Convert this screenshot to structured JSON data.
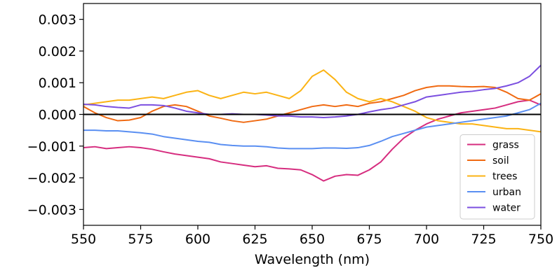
{
  "chart_data": {
    "type": "line",
    "title": "",
    "xlabel": "Wavelength (nm)",
    "ylabel": "",
    "xlim": [
      550,
      750
    ],
    "ylim": [
      -0.0035,
      0.0035
    ],
    "xticks": [
      550,
      575,
      600,
      625,
      650,
      675,
      700,
      725,
      750
    ],
    "xtick_labels": [
      "550",
      "575",
      "600",
      "625",
      "650",
      "675",
      "700",
      "725",
      "750"
    ],
    "yticks": [
      0.003,
      0.002,
      0.001,
      0.0,
      -0.001,
      -0.002,
      -0.003
    ],
    "ytick_labels": [
      "0.003",
      "0.002",
      "0.001",
      "0.000",
      "−0.001",
      "−0.002",
      "−0.003"
    ],
    "grid": false,
    "legend_position": "bottom-right",
    "reference_line": {
      "y": 0.0,
      "color": "#000000"
    },
    "series": [
      {
        "name": "grass",
        "color": "#d62d7f",
        "x": [
          550,
          555,
          560,
          565,
          570,
          575,
          580,
          585,
          590,
          595,
          600,
          605,
          610,
          615,
          620,
          625,
          630,
          635,
          640,
          645,
          650,
          655,
          660,
          665,
          670,
          675,
          680,
          685,
          690,
          695,
          700,
          705,
          710,
          715,
          720,
          725,
          730,
          735,
          740,
          745,
          750
        ],
        "y": [
          -0.00105,
          -0.00102,
          -0.00108,
          -0.00105,
          -0.00102,
          -0.00105,
          -0.0011,
          -0.00118,
          -0.00125,
          -0.0013,
          -0.00135,
          -0.0014,
          -0.0015,
          -0.00155,
          -0.0016,
          -0.00165,
          -0.00162,
          -0.0017,
          -0.00172,
          -0.00175,
          -0.0019,
          -0.0021,
          -0.00195,
          -0.0019,
          -0.00192,
          -0.00175,
          -0.0015,
          -0.0011,
          -0.00075,
          -0.0005,
          -0.0003,
          -0.00015,
          -5e-05,
          5e-05,
          0.0001,
          0.00015,
          0.0002,
          0.0003,
          0.0004,
          0.00045,
          0.0003
        ]
      },
      {
        "name": "soil",
        "color": "#f06a12",
        "x": [
          550,
          555,
          560,
          565,
          570,
          575,
          580,
          585,
          590,
          595,
          600,
          605,
          610,
          615,
          620,
          625,
          630,
          635,
          640,
          645,
          650,
          655,
          660,
          665,
          670,
          675,
          680,
          685,
          690,
          695,
          700,
          705,
          710,
          715,
          720,
          725,
          730,
          735,
          740,
          745,
          750
        ],
        "y": [
          0.00025,
          5e-05,
          -0.0001,
          -0.0002,
          -0.00018,
          -0.0001,
          0.0001,
          0.00025,
          0.0003,
          0.00025,
          0.0001,
          -5e-05,
          -0.00012,
          -0.0002,
          -0.00025,
          -0.0002,
          -0.00015,
          -5e-05,
          5e-05,
          0.00015,
          0.00025,
          0.0003,
          0.00025,
          0.0003,
          0.00025,
          0.00035,
          0.0004,
          0.0005,
          0.0006,
          0.00075,
          0.00085,
          0.0009,
          0.0009,
          0.00088,
          0.00087,
          0.00088,
          0.00085,
          0.0007,
          0.0005,
          0.00045,
          0.00065
        ]
      },
      {
        "name": "trees",
        "color": "#fbb314",
        "x": [
          550,
          555,
          560,
          565,
          570,
          575,
          580,
          585,
          590,
          595,
          600,
          605,
          610,
          615,
          620,
          625,
          630,
          635,
          640,
          645,
          650,
          655,
          660,
          665,
          670,
          675,
          680,
          685,
          690,
          695,
          700,
          705,
          710,
          715,
          720,
          725,
          730,
          735,
          740,
          745,
          750
        ],
        "y": [
          0.0003,
          0.00035,
          0.0004,
          0.00045,
          0.00045,
          0.0005,
          0.00055,
          0.0005,
          0.0006,
          0.0007,
          0.00075,
          0.0006,
          0.0005,
          0.0006,
          0.0007,
          0.00065,
          0.0007,
          0.0006,
          0.0005,
          0.00075,
          0.0012,
          0.0014,
          0.0011,
          0.0007,
          0.0005,
          0.0004,
          0.0005,
          0.0004,
          0.00025,
          0.0001,
          -0.0001,
          -0.0002,
          -0.00025,
          -0.0003,
          -0.0003,
          -0.00035,
          -0.0004,
          -0.00045,
          -0.00045,
          -0.0005,
          -0.00055
        ]
      },
      {
        "name": "urban",
        "color": "#5a8ff2",
        "x": [
          550,
          555,
          560,
          565,
          570,
          575,
          580,
          585,
          590,
          595,
          600,
          605,
          610,
          615,
          620,
          625,
          630,
          635,
          640,
          645,
          650,
          655,
          660,
          665,
          670,
          675,
          680,
          685,
          690,
          695,
          700,
          705,
          710,
          715,
          720,
          725,
          730,
          735,
          740,
          745,
          750
        ],
        "y": [
          -0.0005,
          -0.0005,
          -0.00052,
          -0.00052,
          -0.00055,
          -0.00058,
          -0.00062,
          -0.0007,
          -0.00075,
          -0.0008,
          -0.00085,
          -0.00088,
          -0.00095,
          -0.00098,
          -0.001,
          -0.001,
          -0.00102,
          -0.00106,
          -0.00108,
          -0.00108,
          -0.00108,
          -0.00106,
          -0.00106,
          -0.00107,
          -0.00105,
          -0.00098,
          -0.00085,
          -0.0007,
          -0.0006,
          -0.0005,
          -0.0004,
          -0.00035,
          -0.0003,
          -0.00025,
          -0.0002,
          -0.00015,
          -0.0001,
          -5e-05,
          5e-05,
          0.00015,
          0.00035
        ]
      },
      {
        "name": "water",
        "color": "#7b4fe0",
        "x": [
          550,
          555,
          560,
          565,
          570,
          575,
          580,
          585,
          590,
          595,
          600,
          605,
          610,
          615,
          620,
          625,
          630,
          635,
          640,
          645,
          650,
          655,
          660,
          665,
          670,
          675,
          680,
          685,
          690,
          695,
          700,
          705,
          710,
          715,
          720,
          725,
          730,
          735,
          740,
          745,
          750
        ],
        "y": [
          0.00032,
          0.0003,
          0.00025,
          0.00022,
          0.0002,
          0.0003,
          0.0003,
          0.00028,
          0.0002,
          0.0001,
          5e-05,
          0.0,
          0.0,
          2e-05,
          0.0,
          0.0,
          -2e-05,
          -5e-05,
          -5e-05,
          -8e-05,
          -8e-05,
          -0.0001,
          -8e-05,
          -5e-05,
          0.0,
          8e-05,
          0.00015,
          0.0002,
          0.0003,
          0.0004,
          0.00055,
          0.0006,
          0.00065,
          0.0007,
          0.00073,
          0.00078,
          0.00082,
          0.0009,
          0.001,
          0.0012,
          0.00155
        ]
      }
    ]
  }
}
